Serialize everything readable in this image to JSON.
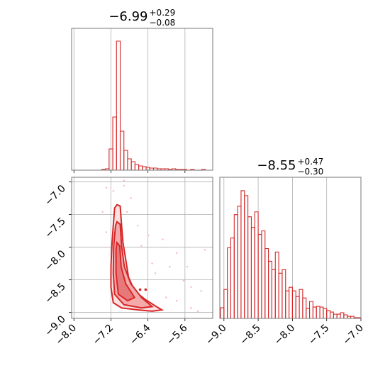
{
  "chart_data": [
    {
      "type": "histogram",
      "title": "−6.99",
      "title_upper": "+0.29",
      "title_lower": "−0.08",
      "bins": [
        -7.4,
        -7.32,
        -7.24,
        -7.16,
        -7.08,
        -7.0,
        -6.92,
        -6.84,
        -6.76,
        -6.68,
        -6.6,
        -6.52,
        -6.44,
        -6.36,
        -6.28,
        -6.2,
        -6.12,
        -6.04,
        -5.96,
        -5.88,
        -5.8,
        -5.72,
        -5.64,
        -5.56,
        -5.48,
        -5.4,
        -5.32,
        -5.24,
        -5.16
      ],
      "values": [
        1,
        2,
        30,
        75,
        182,
        55,
        28,
        16,
        12,
        8,
        6,
        5,
        4,
        3,
        3,
        2,
        2,
        2,
        1,
        2,
        1,
        1,
        1,
        0,
        1,
        0,
        0,
        1
      ],
      "color": "#d62728",
      "xlim": [
        -8.05,
        -5.0
      ],
      "ylim": [
        0,
        200
      ],
      "xticks": [
        -8.0,
        -7.2,
        -6.4,
        -5.6
      ],
      "grid": true
    },
    {
      "type": "contour",
      "xlim": [
        -8.05,
        -5.0
      ],
      "ylim": [
        -9.09,
        -6.93
      ],
      "grid": true,
      "color": "#d62728",
      "xticks": [
        {
          "value": -8.0,
          "label": "−8.0"
        },
        {
          "value": -7.2,
          "label": "−7.2"
        },
        {
          "value": -6.4,
          "label": "−6.4"
        },
        {
          "value": -5.6,
          "label": "−5.6"
        }
      ],
      "yticks": [
        {
          "value": -7.0,
          "label": "−7.0"
        },
        {
          "value": -7.5,
          "label": "−7.5"
        },
        {
          "value": -8.0,
          "label": "−8.0"
        },
        {
          "value": -8.5,
          "label": "−8.5"
        },
        {
          "value": -9.0,
          "label": "−9.0"
        }
      ],
      "scatter": [
        {
          "color": "#f4b9b9",
          "x": [
            -7.3,
            -7.15,
            -6.92,
            -6.85,
            -6.62,
            -6.39,
            -6.08,
            -5.78,
            -5.93,
            -5.63,
            -5.47,
            -5.25,
            -5.17,
            -6.24,
            -6.54,
            -6.77,
            -7.38,
            -7.3,
            -5.78,
            -5.47,
            -5.32,
            -6.01,
            -6.31,
            -5.55,
            -6.92
          ],
          "y": [
            -7.09,
            -7.14,
            -7.06,
            -7.46,
            -7.67,
            -7.82,
            -7.88,
            -8.09,
            -8.3,
            -8.51,
            -8.61,
            -8.67,
            -8.04,
            -8.4,
            -7.98,
            -7.25,
            -7.46,
            -7.77,
            -8.82,
            -8.93,
            -8.98,
            -8.77,
            -8.25,
            -8.3,
            -6.98
          ]
        },
        {
          "color": "#d62728",
          "x": [
            -6.57,
            -6.45
          ],
          "y": [
            -8.65,
            -8.65
          ]
        }
      ],
      "contours": [
        {
          "color": "#fbe1e1",
          "x": [
            -7.07,
            -7.0,
            -6.97,
            -6.94,
            -6.88,
            -6.82,
            -6.69,
            -6.46,
            -6.24,
            -6.1,
            -6.31,
            -6.62,
            -6.97,
            -7.15,
            -7.2,
            -7.2,
            -7.18,
            -7.15,
            -7.12
          ],
          "y": [
            -7.35,
            -7.37,
            -7.67,
            -7.93,
            -8.19,
            -8.46,
            -8.67,
            -8.8,
            -8.9,
            -8.96,
            -8.98,
            -8.96,
            -8.93,
            -8.85,
            -8.61,
            -8.3,
            -7.98,
            -7.67,
            -7.4
          ]
        },
        {
          "color": "#f5aaaa",
          "x": [
            -7.07,
            -7.0,
            -6.97,
            -6.91,
            -6.77,
            -6.54,
            -6.31,
            -6.54,
            -6.92,
            -7.12,
            -7.15,
            -7.14,
            -7.1
          ],
          "y": [
            -7.61,
            -7.65,
            -7.98,
            -8.3,
            -8.56,
            -8.77,
            -8.91,
            -8.93,
            -8.88,
            -8.72,
            -8.4,
            -7.98,
            -7.67
          ]
        },
        {
          "color": "#e8797b",
          "x": [
            -7.07,
            -7.01,
            -6.98,
            -6.88,
            -6.69,
            -6.84,
            -7.04,
            -7.09,
            -7.09
          ],
          "y": [
            -7.93,
            -7.98,
            -8.3,
            -8.56,
            -8.77,
            -8.82,
            -8.72,
            -8.4,
            -8.03
          ]
        }
      ]
    },
    {
      "type": "histogram",
      "title": "−8.55",
      "title_upper": "+0.47",
      "title_lower": "−0.30",
      "bins": [
        -9.05,
        -9.0,
        -8.95,
        -8.9,
        -8.85,
        -8.8,
        -8.75,
        -8.7,
        -8.65,
        -8.6,
        -8.55,
        -8.5,
        -8.45,
        -8.4,
        -8.35,
        -8.3,
        -8.25,
        -8.2,
        -8.15,
        -8.1,
        -8.05,
        -8.0,
        -7.95,
        -7.9,
        -7.85,
        -7.8,
        -7.75,
        -7.7,
        -7.65,
        -7.6,
        -7.55,
        -7.5,
        -7.45,
        -7.4,
        -7.35,
        -7.3,
        -7.25,
        -7.2,
        -7.15,
        -7.1,
        -7.05,
        -7.0
      ],
      "values": [
        15,
        41,
        100,
        114,
        147,
        159,
        181,
        174,
        144,
        129,
        151,
        119,
        124,
        99,
        81,
        69,
        94,
        64,
        69,
        39,
        44,
        39,
        31,
        41,
        29,
        14,
        24,
        16,
        17,
        16,
        14,
        11,
        9,
        6,
        6,
        8,
        5,
        3,
        3,
        1,
        1
      ],
      "color": "#d62728",
      "xlim": [
        -9.06,
        -7.0
      ],
      "ylim": [
        0,
        200
      ],
      "grid": true,
      "xticks": [
        {
          "value": -9.0,
          "label": "−9.0"
        },
        {
          "value": -8.5,
          "label": "−8.5"
        },
        {
          "value": -8.0,
          "label": "−8.0"
        },
        {
          "value": -7.5,
          "label": "−7.5"
        },
        {
          "value": -7.0,
          "label": "−7.0"
        }
      ]
    }
  ]
}
